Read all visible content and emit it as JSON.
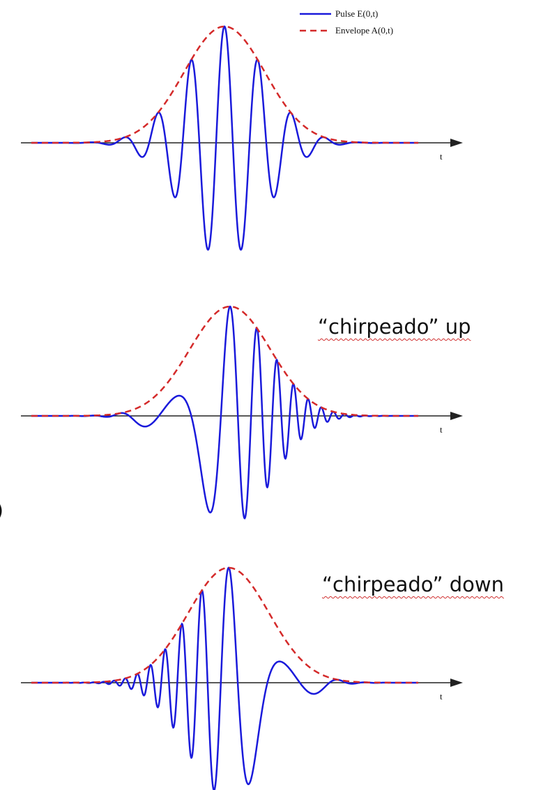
{
  "legend": [
    {
      "label": "Pulse E(0,t)"
    },
    {
      "label": "Envelope A(0,t)"
    }
  ],
  "panels": [
    {
      "axis_label": "t"
    },
    {
      "axis_label": "t",
      "caption": "“chirpeado” up"
    },
    {
      "axis_label": "t",
      "caption": "“chirpeado” down"
    }
  ],
  "edge_text": ")"
}
